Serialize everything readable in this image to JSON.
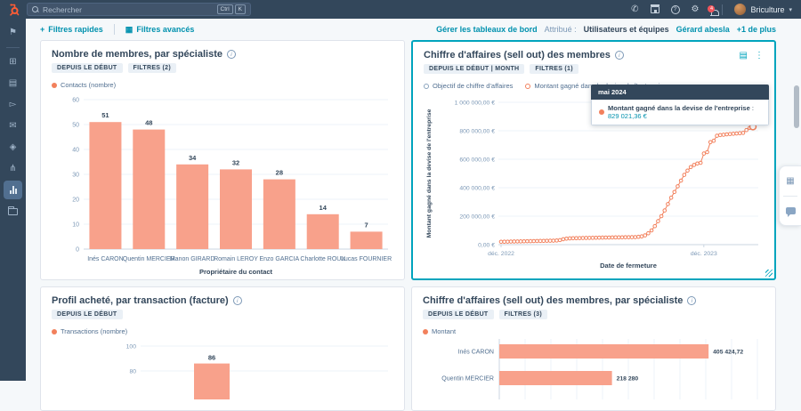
{
  "topnav": {
    "search_placeholder": "Rechercher",
    "shortcut_ctrl": "Ctrl",
    "shortcut_k": "K",
    "notification_count": "4",
    "account_name": "Briculture"
  },
  "filter_bar": {
    "quick_filters": "Filtres rapides",
    "advanced_filters": "Filtres avancés",
    "manage_dashboards": "Gérer les tableaux de bord",
    "assigned_label": "Attribué :",
    "assigned_teams": "Utilisateurs et équipes",
    "assigned_user": "Gérard abesla",
    "assigned_more": "+1 de plus"
  },
  "cards": {
    "c1": {
      "title": "Nombre de membres, par spécialiste",
      "badge_period": "DEPUIS LE DÉBUT",
      "badge_filters": "FILTRES (2)",
      "legend1": "Contacts (nombre)"
    },
    "c2": {
      "title": "Chiffre d'affaires (sell out) des membres",
      "badge_period": "DEPUIS LE DÉBUT | MONTH",
      "badge_filters": "FILTRES (1)",
      "legend1": "Objectif de chiffre d'affaires",
      "legend2": "Montant gagné dans la devise de l'entreprise",
      "tooltip_title": "mai 2024",
      "tooltip_label": "Montant gagné dans la devise de l'entreprise",
      "tooltip_value": "829 021,36 €"
    },
    "c3": {
      "title": "Profil acheté, par transaction (facture)",
      "badge_period": "DEPUIS LE DÉBUT",
      "legend1": "Transactions (nombre)"
    },
    "c4": {
      "title": "Chiffre d'affaires (sell out) des membres, par spécialiste",
      "badge_period": "DEPUIS LE DÉBUT",
      "badge_filters": "FILTRES (3)",
      "legend1": "Montant"
    }
  },
  "icons": {
    "phone": "✆",
    "gear": "⚙",
    "caret": "▾",
    "help": "?",
    "bookmark": "⚑",
    "grid": "⊞",
    "contacts": "▤",
    "send": "▻",
    "inbox": "✉",
    "tag": "◈",
    "workflow": "⋔",
    "kebab": "⋮",
    "card_settings": "▤",
    "adv_filter": "▦",
    "flyout_grid": "▦",
    "plus": "+",
    "info": "i"
  },
  "colors": {
    "accent_teal": "#00a4bd",
    "link_teal": "#0091ae",
    "series_orange": "#f2805c",
    "bar_fill": "#f8a18b",
    "navy": "#33475b",
    "axis_text": "#7c98b6",
    "grid_line": "#eef3f8",
    "axis_line": "#cbd6e2"
  },
  "chart_data": [
    {
      "type": "bar",
      "title": "Nombre de membres, par spécialiste",
      "categories": [
        "Inés CARON",
        "Quentin MERCIER",
        "Manon GIRARD",
        "Romain LEROY",
        "Enzo GARCIA",
        "Charlotte ROUX",
        "Lucas FOURNIER"
      ],
      "values": [
        51,
        48,
        34,
        32,
        28,
        14,
        7
      ],
      "xlabel": "Propriétaire du contact",
      "ylabel": "Contacts (nombre)",
      "ylim": [
        0,
        60
      ],
      "ytick_step": 10,
      "legend": [
        "Contacts (nombre)"
      ],
      "grid": true
    },
    {
      "type": "line",
      "title": "Chiffre d'affaires (sell out) des membres",
      "xlabel": "Date de fermeture",
      "ylabel": "Montant gagné dans la devise de l'entreprise",
      "ylim": [
        0,
        1000000
      ],
      "ytick_labels": [
        "0,00 €",
        "200 000,00 €",
        "400 000,00 €",
        "600 000,00 €",
        "800 000,00 €",
        "1 000 000,00 €"
      ],
      "xtick_labels": [
        "déc. 2022",
        "déc. 2023"
      ],
      "xtick_positions": [
        0.0,
        0.805
      ],
      "legend": [
        "Objectif de chiffre d'affaires",
        "Montant gagné dans la devise de l'entreprise"
      ],
      "marker": "hollow-circle",
      "values": [
        20000,
        20500,
        21000,
        21500,
        22000,
        22500,
        23000,
        23500,
        24000,
        24500,
        25000,
        25500,
        26000,
        26500,
        27000,
        27500,
        28000,
        29000,
        32000,
        38000,
        42000,
        44000,
        45000,
        45500,
        46000,
        46500,
        47000,
        47500,
        48000,
        48500,
        49000,
        49500,
        50000,
        50000,
        50500,
        51000,
        51000,
        51500,
        52000,
        52000,
        52500,
        53000,
        55000,
        58000,
        65000,
        80000,
        100000,
        130000,
        165000,
        200000,
        240000,
        285000,
        330000,
        370000,
        410000,
        450000,
        490000,
        520000,
        545000,
        560000,
        570000,
        575000,
        640000,
        650000,
        720000,
        730000,
        765000,
        770000,
        772000,
        775000,
        777000,
        779000,
        781000,
        783000,
        785000,
        805000,
        820000,
        829021.36
      ],
      "last_point_highlighted": true,
      "tooltip": {
        "title": "mai 2024",
        "series": "Montant gagné dans la devise de l'entreprise",
        "value": "829 021,36 €"
      }
    },
    {
      "type": "bar",
      "title": "Profil acheté, par transaction (facture)",
      "legend": [
        "Transactions (nombre)"
      ],
      "ytick_labels_visible": [
        "100",
        "80"
      ],
      "categories": [
        ""
      ],
      "values": [
        86
      ],
      "note_visible_range": [
        80,
        100
      ]
    },
    {
      "type": "bar_horizontal",
      "title": "Chiffre d'affaires (sell out) des membres, par spécialiste",
      "legend": [
        "Montant"
      ],
      "categories": [
        "Inés CARON",
        "Quentin MERCIER"
      ],
      "values": [
        405424.72,
        218280
      ],
      "value_labels": [
        "405 424,72",
        "218 280"
      ],
      "xlim": [
        0,
        500000
      ]
    }
  ]
}
